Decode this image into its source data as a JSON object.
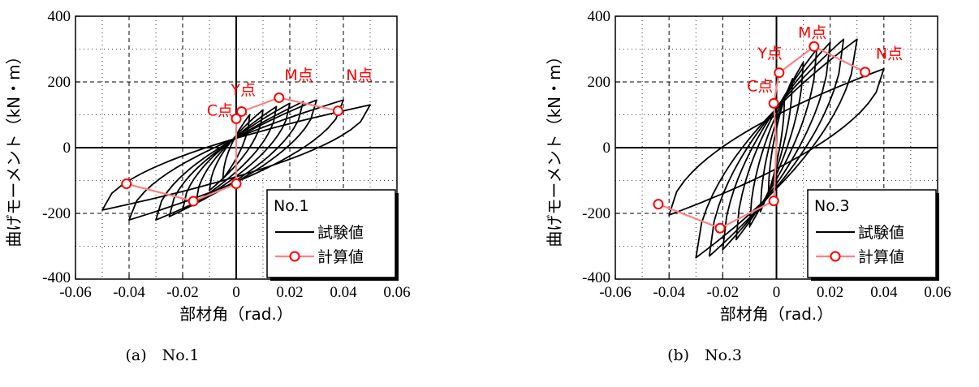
{
  "chart_data": [
    {
      "type": "line",
      "panel": "No.1",
      "caption": "(a)　No.1",
      "xlabel": "部材角（rad.）",
      "ylabel": "曲げモーメント（kN・m）",
      "xlim": [
        -0.06,
        0.06
      ],
      "ylim": [
        -400,
        400
      ],
      "xticks": [
        "-0.06",
        "-0.04",
        "-0.02",
        "0",
        "0.02",
        "0.04",
        "0.06"
      ],
      "yticks": [
        "400",
        "200",
        "0",
        "-200",
        "-400"
      ],
      "grid": true,
      "legend": {
        "placement": "bottom-right",
        "title": "No.1",
        "entries": [
          "試験値",
          "計算値"
        ]
      },
      "series": [
        {
          "name": "試験値",
          "color": "#000000",
          "cycles": [
            {
              "dmax": 0.005,
              "mmax": 100,
              "dmin": -0.005,
              "mmin": -95
            },
            {
              "dmax": 0.01,
              "mmax": 115,
              "dmin": -0.01,
              "mmin": -130
            },
            {
              "dmax": 0.015,
              "mmax": 125,
              "dmin": -0.015,
              "mmin": -165
            },
            {
              "dmax": 0.02,
              "mmax": 135,
              "dmin": -0.02,
              "mmin": -190
            },
            {
              "dmax": 0.025,
              "mmax": 140,
              "dmin": -0.025,
              "mmin": -210
            },
            {
              "dmax": 0.03,
              "mmax": 145,
              "dmin": -0.03,
              "mmin": -220
            },
            {
              "dmax": 0.04,
              "mmax": 145,
              "dmin": -0.04,
              "mmin": -220
            },
            {
              "dmax": 0.05,
              "mmax": 130,
              "dmin": -0.05,
              "mmin": -190
            }
          ]
        },
        {
          "name": "計算値",
          "color": "#ff8080",
          "marker_color": "#ff0000",
          "positive": [
            {
              "x": 0.0,
              "y": 0
            },
            {
              "x": 0.0,
              "y": 88
            },
            {
              "x": 0.002,
              "y": 110
            },
            {
              "x": 0.016,
              "y": 152
            },
            {
              "x": 0.038,
              "y": 112
            }
          ],
          "negative": [
            {
              "x": 0.0,
              "y": 0
            },
            {
              "x": 0.0,
              "y": -110
            },
            {
              "x": -0.016,
              "y": -163
            },
            {
              "x": -0.041,
              "y": -110
            }
          ]
        }
      ],
      "annotations": [
        {
          "text": "C点",
          "x": -0.011,
          "y": 98
        },
        {
          "text": "Y点",
          "x": -0.002,
          "y": 160
        },
        {
          "text": "M点",
          "x": 0.018,
          "y": 205
        },
        {
          "text": "N点",
          "x": 0.041,
          "y": 205
        }
      ]
    },
    {
      "type": "line",
      "panel": "No.3",
      "caption": "(b)　No.3",
      "xlabel": "部材角（rad.）",
      "ylabel": "曲げモーメント（kN・m）",
      "xlim": [
        -0.06,
        0.06
      ],
      "ylim": [
        -400,
        400
      ],
      "xticks": [
        "-0.06",
        "-0.04",
        "-0.02",
        "0",
        "0.02",
        "0.04",
        "0.06"
      ],
      "yticks": [
        "400",
        "200",
        "0",
        "-200",
        "-400"
      ],
      "grid": true,
      "legend": {
        "placement": "bottom-right",
        "title": "No.3",
        "entries": [
          "試験値",
          "計算値"
        ]
      },
      "series": [
        {
          "name": "試験値",
          "color": "#000000",
          "cycles": [
            {
              "dmax": 0.003,
              "mmax": 150,
              "dmin": -0.003,
              "mmin": -140
            },
            {
              "dmax": 0.006,
              "mmax": 210,
              "dmin": -0.006,
              "mmin": -195
            },
            {
              "dmax": 0.01,
              "mmax": 260,
              "dmin": -0.01,
              "mmin": -240
            },
            {
              "dmax": 0.015,
              "mmax": 300,
              "dmin": -0.015,
              "mmin": -280
            },
            {
              "dmax": 0.02,
              "mmax": 320,
              "dmin": -0.02,
              "mmin": -310
            },
            {
              "dmax": 0.025,
              "mmax": 330,
              "dmin": -0.025,
              "mmin": -330
            },
            {
              "dmax": 0.03,
              "mmax": 330,
              "dmin": -0.03,
              "mmin": -335
            },
            {
              "dmax": 0.04,
              "mmax": 240,
              "dmin": -0.04,
              "mmin": -205
            }
          ]
        },
        {
          "name": "計算値",
          "color": "#ff8080",
          "marker_color": "#ff0000",
          "positive": [
            {
              "x": 0.0,
              "y": 0
            },
            {
              "x": -0.001,
              "y": 135
            },
            {
              "x": 0.001,
              "y": 228
            },
            {
              "x": 0.014,
              "y": 308
            },
            {
              "x": 0.033,
              "y": 230
            }
          ],
          "negative": [
            {
              "x": 0.0,
              "y": 0
            },
            {
              "x": -0.001,
              "y": -162
            },
            {
              "x": -0.021,
              "y": -245
            },
            {
              "x": -0.044,
              "y": -172
            }
          ]
        }
      ],
      "annotations": [
        {
          "text": "C点",
          "x": -0.011,
          "y": 172
        },
        {
          "text": "Y点",
          "x": -0.007,
          "y": 272
        },
        {
          "text": "M点",
          "x": 0.008,
          "y": 335
        },
        {
          "text": "N点",
          "x": 0.037,
          "y": 270
        }
      ]
    }
  ]
}
